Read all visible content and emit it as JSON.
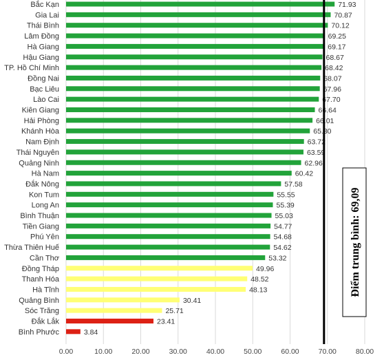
{
  "chart_data": {
    "type": "bar",
    "orientation": "horizontal",
    "categories": [
      "Bắc Kạn",
      "Gia Lai",
      "Thái Bình",
      "Lâm Đồng",
      "Hà Giang",
      "Hậu Giang",
      "TP. Hồ Chí Minh",
      "Đồng Nai",
      "Bạc Liêu",
      "Lào Cai",
      "Kiên Giang",
      "Hải Phòng",
      "Khánh Hòa",
      "Nam Định",
      "Thái Nguyên",
      "Quảng Ninh",
      "Hà Nam",
      "Đắk Nông",
      "Kon Tum",
      "Long An",
      "Bình Thuận",
      "Tiền Giang",
      "Phú Yên",
      "Thừa Thiên Huế",
      "Cần Thơ",
      "Đồng Tháp",
      "Thanh Hóa",
      "Hà Tĩnh",
      "Quảng Bình",
      "Sóc Trăng",
      "Đắk Lắk",
      "Bình Phước"
    ],
    "values": [
      71.93,
      70.87,
      70.12,
      69.25,
      69.17,
      68.67,
      68.42,
      68.07,
      67.96,
      67.7,
      66.64,
      66.01,
      65.3,
      63.72,
      63.59,
      62.96,
      60.42,
      57.58,
      55.55,
      55.39,
      55.03,
      54.77,
      54.68,
      54.62,
      53.32,
      49.96,
      48.52,
      48.13,
      30.41,
      25.71,
      23.41,
      3.84
    ],
    "value_labels": [
      "71.93",
      "70.87",
      "70.12",
      "69.25",
      "69.17",
      "68.67",
      "68.42",
      "68.07",
      "67.96",
      "67.70",
      "66.64",
      "66.01",
      "65.30",
      "63.72",
      "63.59",
      "62.96",
      "60.42",
      "57.58",
      "55.55",
      "55.39",
      "55.03",
      "54.77",
      "54.68",
      "54.62",
      "53.32",
      "49.96",
      "48.52",
      "48.13",
      "30.41",
      "25.71",
      "23.41",
      "3.84"
    ],
    "xlim": [
      0,
      80
    ],
    "xticks": [
      "0.00",
      "10.00",
      "20.00",
      "30.00",
      "40.00",
      "50.00",
      "60.00",
      "70.00",
      "80.00"
    ],
    "grid": true,
    "average_line": {
      "value": 69.09,
      "label": "Điểm trung bình: 69,09"
    },
    "colors": {
      "green": "#22a33a",
      "yellow": "#ffff75",
      "red": "#dd2115",
      "average": "#000000"
    },
    "color_thresholds": {
      "green_min": 50,
      "yellow_min": 25
    }
  }
}
